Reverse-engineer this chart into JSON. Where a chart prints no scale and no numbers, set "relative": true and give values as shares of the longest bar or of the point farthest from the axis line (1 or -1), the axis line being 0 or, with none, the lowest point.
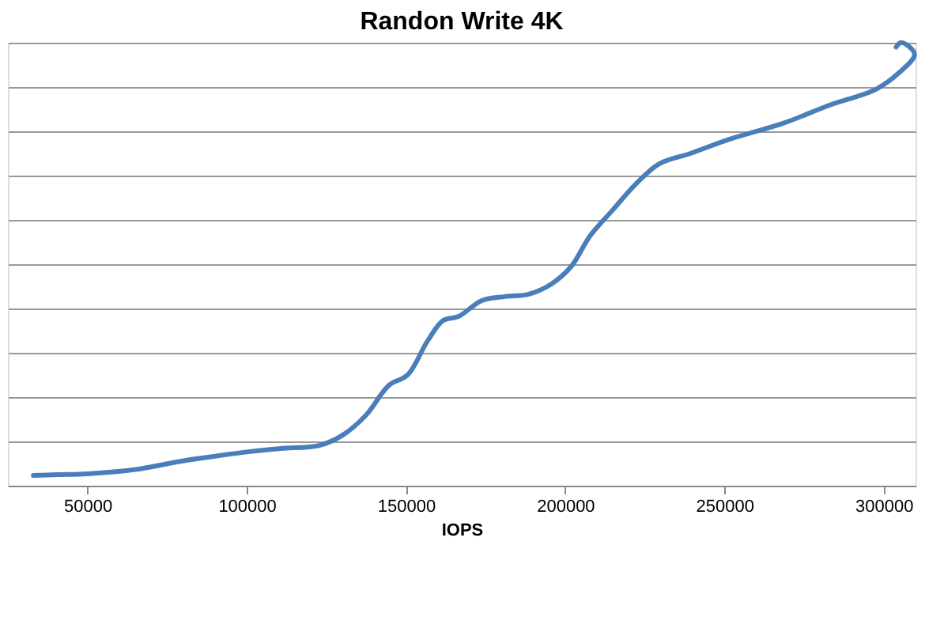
{
  "chart_data": {
    "type": "line",
    "title": "Randon Write 4K",
    "xlabel": "IOPS",
    "relative": true,
    "grid": "y",
    "legend": false,
    "marker": "none",
    "line_style": "solid",
    "xlim": [
      25000,
      310000
    ],
    "xticks": [
      50000,
      100000,
      150000,
      200000,
      250000,
      300000
    ],
    "series": [
      {
        "color": "#4a7ebb",
        "x": [
          33000,
          40300,
          50000,
          64600,
          79100,
          91300,
          101000,
          110700,
          122800,
          130100,
          137400,
          144700,
          150500,
          156800,
          161700,
          166500,
          173800,
          181100,
          188300,
          195600,
          201900,
          207800,
          215000,
          222300,
          229600,
          239300,
          251500,
          268400,
          283000,
          297600,
          304800,
          309700,
          307300,
          305300,
          303900
        ],
        "values": [
          0.023,
          0.025,
          0.027,
          0.036,
          0.055,
          0.068,
          0.077,
          0.084,
          0.091,
          0.114,
          0.159,
          0.227,
          0.25,
          0.327,
          0.373,
          0.382,
          0.418,
          0.427,
          0.432,
          0.455,
          0.495,
          0.564,
          0.623,
          0.682,
          0.727,
          0.75,
          0.782,
          0.818,
          0.859,
          0.895,
          0.932,
          0.973,
          0.995,
          1.0,
          0.99
        ]
      }
    ]
  }
}
